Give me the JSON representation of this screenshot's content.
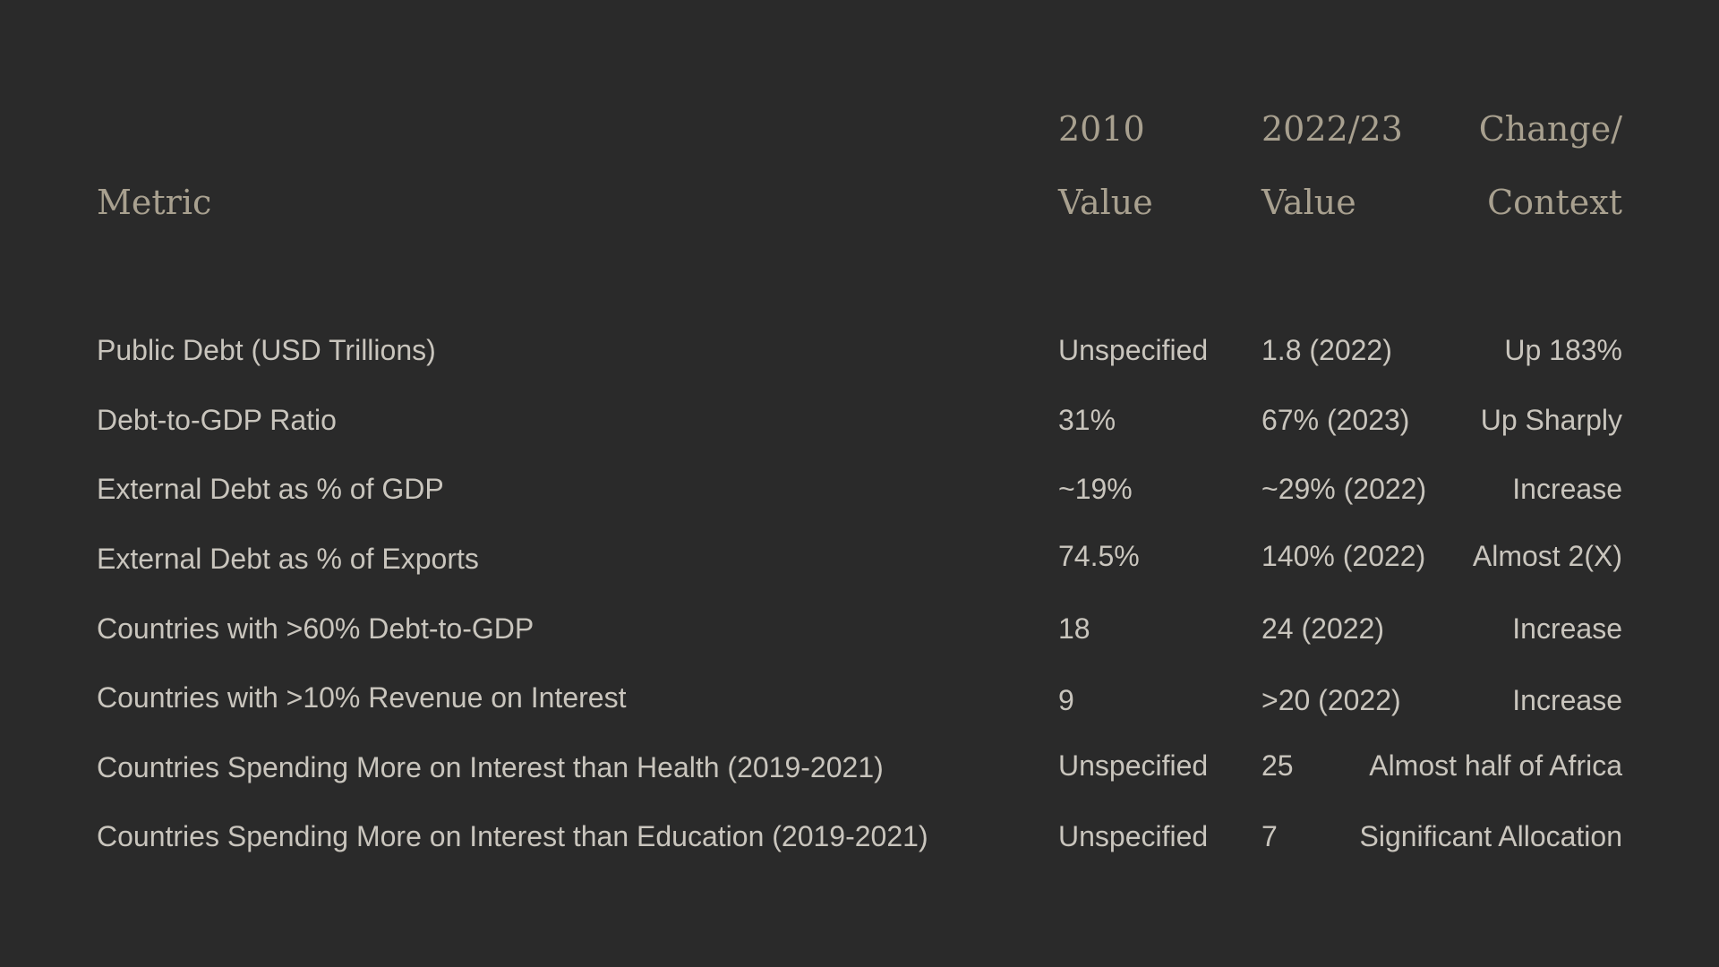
{
  "table": {
    "headers": {
      "metric": "Metric",
      "col2010_line1": "2010",
      "col2010_line2": "Value",
      "col2022_line1": "2022/23",
      "col2022_line2": "Value",
      "change_line1": "Change/",
      "change_line2": "Context"
    },
    "rows": [
      {
        "metric": "Public Debt (USD Trillions)",
        "v2010": "Unspecified",
        "v2022": "1.8 (2022)",
        "change": "Up 183%"
      },
      {
        "metric": "Debt-to-GDP Ratio",
        "v2010": "31%",
        "v2022": "67% (2023)",
        "change": "Up Sharply"
      },
      {
        "metric": "External Debt as % of GDP",
        "v2010": "~19%",
        "v2022": "~29% (2022)",
        "change": "Increase"
      },
      {
        "metric": "External Debt as % of Exports",
        "v2010": "74.5%",
        "v2022": "140% (2022)",
        "change": "Almost 2(X)"
      },
      {
        "metric": "Countries with >60% Debt-to-GDP",
        "v2010": "18",
        "v2022": "24 (2022)",
        "change": "Increase"
      },
      {
        "metric": "Countries with >10% Revenue on Interest",
        "v2010": "9",
        "v2022": ">20 (2022)",
        "change": "Increase"
      },
      {
        "metric": "Countries Spending More on Interest than Health (2019-2021)",
        "v2010": "Unspecified",
        "v2022": "25",
        "change": "Almost half of Africa"
      },
      {
        "metric": "Countries Spending More on Interest than Education (2019-2021)",
        "v2010": "Unspecified",
        "v2022": "7",
        "change": "Significant Allocation"
      }
    ]
  }
}
